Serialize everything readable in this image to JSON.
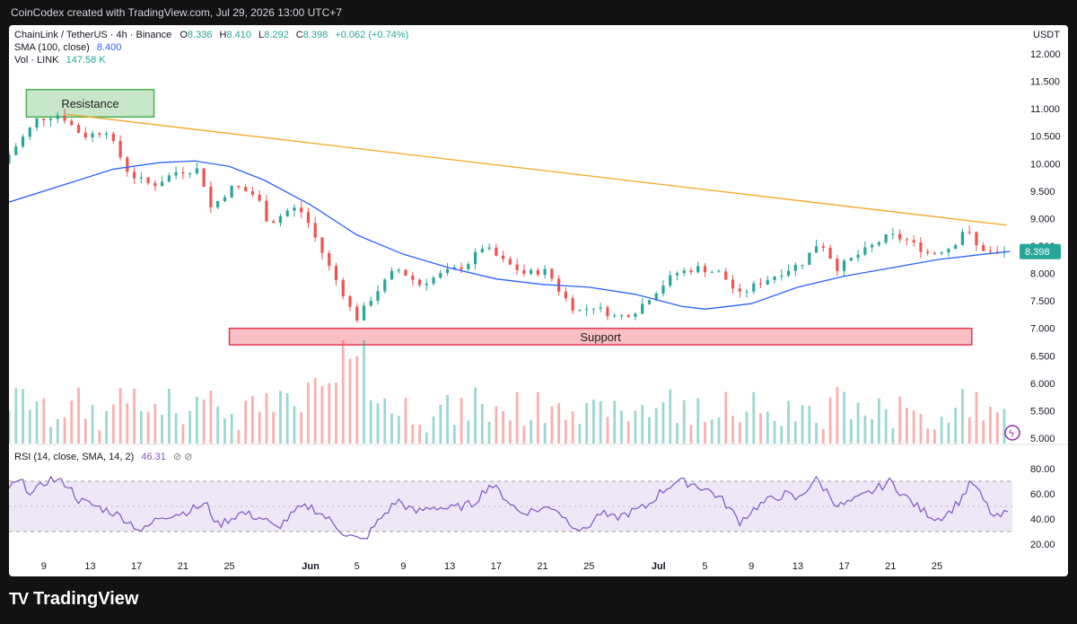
{
  "credit": "CoinCodex created with TradingView.com, Jul 29, 2026 13:00 UTC+7",
  "logo": {
    "mark": "TV",
    "name": "TradingView",
    "icon": "tradingview-logo-icon"
  },
  "legend": {
    "pair": "ChainLink / TetherUS · 4h · Binance",
    "o_label": "O",
    "o_value": "8.336",
    "h_label": "H",
    "h_value": "8.410",
    "l_label": "L",
    "l_value": "8.292",
    "c_label": "C",
    "c_value": "8.398",
    "change": "+0.062 (+0.74%)",
    "sma_label": "SMA (100, close)",
    "sma_value": "8.400",
    "vol_label": "Vol · LINK",
    "vol_value": "147.58 K"
  },
  "colors": {
    "up": "#26a69a",
    "down": "#ef5350",
    "sma": "#2962ff",
    "trend": "#f5a623",
    "rsi": "#7e57c2",
    "resistance_fill": "#c8e6c9",
    "resistance_border": "#4caf50",
    "support_fill": "#f8c0c5",
    "support_border": "#e53950"
  },
  "chart_data": [
    {
      "type": "candlestick",
      "title": "ChainLink / TetherUS · 4h · Binance",
      "currency": "USDT",
      "ylim": [
        5.0,
        12.0
      ],
      "y_ticks": [
        "12.000",
        "11.500",
        "11.000",
        "10.500",
        "10.000",
        "9.500",
        "9.000",
        "8.500",
        "8.000",
        "7.500",
        "7.000",
        "6.500",
        "6.000",
        "5.500",
        "5.000"
      ],
      "x_ticks": [
        "9",
        "13",
        "17",
        "21",
        "25",
        "Jun",
        "5",
        "9",
        "13",
        "17",
        "21",
        "25",
        "Jul",
        "5",
        "9",
        "13",
        "17",
        "21",
        "25"
      ],
      "x_tick_days": [
        9,
        13,
        17,
        21,
        25,
        32,
        36,
        40,
        44,
        48,
        52,
        56,
        62,
        66,
        70,
        74,
        78,
        82,
        86
      ],
      "x_range_days": [
        6,
        92.5
      ],
      "price_path": [
        [
          6,
          10.0
        ],
        [
          9,
          10.8
        ],
        [
          11,
          10.9
        ],
        [
          13,
          10.5
        ],
        [
          15,
          10.6
        ],
        [
          17,
          9.8
        ],
        [
          19,
          9.6
        ],
        [
          21,
          9.85
        ],
        [
          23,
          9.9
        ],
        [
          24,
          9.2
        ],
        [
          26,
          9.6
        ],
        [
          28,
          9.4
        ],
        [
          29,
          8.9
        ],
        [
          31,
          9.2
        ],
        [
          32,
          9.1
        ],
        [
          34,
          8.2
        ],
        [
          35.5,
          7.6
        ],
        [
          36.5,
          7.15
        ],
        [
          38,
          7.6
        ],
        [
          40,
          8.1
        ],
        [
          42,
          7.8
        ],
        [
          44,
          8.0
        ],
        [
          46,
          8.15
        ],
        [
          47.5,
          8.5
        ],
        [
          49,
          8.25
        ],
        [
          51,
          8.0
        ],
        [
          53,
          8.05
        ],
        [
          54,
          7.7
        ],
        [
          55.5,
          7.3
        ],
        [
          57,
          7.4
        ],
        [
          59,
          7.2
        ],
        [
          60.5,
          7.3
        ],
        [
          62,
          7.6
        ],
        [
          64,
          8.0
        ],
        [
          66,
          8.1
        ],
        [
          68,
          8.0
        ],
        [
          69.5,
          7.6
        ],
        [
          71,
          7.8
        ],
        [
          73,
          8.0
        ],
        [
          75,
          8.2
        ],
        [
          76.5,
          8.6
        ],
        [
          78,
          8.1
        ],
        [
          79.5,
          8.3
        ],
        [
          81,
          8.5
        ],
        [
          82.5,
          8.7
        ],
        [
          84,
          8.6
        ],
        [
          86,
          8.35
        ],
        [
          88,
          8.5
        ],
        [
          89,
          8.85
        ],
        [
          90,
          8.5
        ],
        [
          91.5,
          8.35
        ],
        [
          92.3,
          8.398
        ]
      ],
      "sma_path": [
        [
          6,
          9.3
        ],
        [
          12,
          9.7
        ],
        [
          15,
          9.9
        ],
        [
          19,
          10.02
        ],
        [
          22,
          10.05
        ],
        [
          25,
          9.95
        ],
        [
          28,
          9.7
        ],
        [
          32,
          9.25
        ],
        [
          36,
          8.7
        ],
        [
          40,
          8.35
        ],
        [
          44,
          8.1
        ],
        [
          48,
          7.9
        ],
        [
          52,
          7.8
        ],
        [
          56,
          7.75
        ],
        [
          60,
          7.62
        ],
        [
          64,
          7.4
        ],
        [
          66,
          7.35
        ],
        [
          70,
          7.45
        ],
        [
          74,
          7.75
        ],
        [
          78,
          7.95
        ],
        [
          82,
          8.1
        ],
        [
          86,
          8.25
        ],
        [
          90,
          8.35
        ],
        [
          92.3,
          8.4
        ]
      ],
      "last_price": 8.398,
      "last_price_label": "8.398"
    },
    {
      "type": "histogram",
      "series_name": "Vol · LINK",
      "last_value": "147.58 K",
      "notes": "volume bars, unlabeled scale"
    },
    {
      "type": "line",
      "title": "RSI (14, close, SMA, 14, 2)",
      "last_value": "46.31",
      "ylim": [
        15,
        85
      ],
      "band": [
        30,
        70
      ],
      "y_ticks": [
        "80.00",
        "60.00",
        "40.00",
        "20.00"
      ],
      "rsi_path": [
        [
          6,
          65
        ],
        [
          7,
          70
        ],
        [
          8,
          60
        ],
        [
          9.5,
          72
        ],
        [
          11,
          68
        ],
        [
          12,
          55
        ],
        [
          13.5,
          50
        ],
        [
          15,
          45
        ],
        [
          16,
          40
        ],
        [
          17.5,
          30
        ],
        [
          19,
          42
        ],
        [
          21,
          45
        ],
        [
          23,
          52
        ],
        [
          24,
          35
        ],
        [
          26,
          45
        ],
        [
          28,
          40
        ],
        [
          29,
          32
        ],
        [
          31,
          48
        ],
        [
          32,
          50
        ],
        [
          33.5,
          40
        ],
        [
          35,
          28
        ],
        [
          36.5,
          22
        ],
        [
          38,
          40
        ],
        [
          39.5,
          55
        ],
        [
          41,
          45
        ],
        [
          42.5,
          50
        ],
        [
          44,
          48
        ],
        [
          46,
          52
        ],
        [
          47.5,
          68
        ],
        [
          49,
          55
        ],
        [
          50,
          45
        ],
        [
          52,
          48
        ],
        [
          53,
          50
        ],
        [
          54,
          40
        ],
        [
          55.5,
          30
        ],
        [
          57,
          45
        ],
        [
          58,
          40
        ],
        [
          59.5,
          45
        ],
        [
          61,
          50
        ],
        [
          62,
          60
        ],
        [
          63.5,
          70
        ],
        [
          65,
          68
        ],
        [
          66.5,
          62
        ],
        [
          67.5,
          55
        ],
        [
          69,
          38
        ],
        [
          70.5,
          50
        ],
        [
          71.5,
          55
        ],
        [
          73,
          60
        ],
        [
          74,
          55
        ],
        [
          75.5,
          72
        ],
        [
          76.5,
          62
        ],
        [
          77.5,
          50
        ],
        [
          79,
          55
        ],
        [
          80,
          60
        ],
        [
          82,
          70
        ],
        [
          83,
          60
        ],
        [
          84.5,
          48
        ],
        [
          86,
          40
        ],
        [
          87,
          45
        ],
        [
          88,
          55
        ],
        [
          89,
          70
        ],
        [
          90,
          55
        ],
        [
          91,
          40
        ],
        [
          92.3,
          46
        ]
      ]
    }
  ],
  "annotations": {
    "resistance": {
      "label": "Resistance",
      "day_from": 7.5,
      "day_to": 18.5,
      "value_from": 10.85,
      "value_to": 11.35
    },
    "support": {
      "label": "Support",
      "day_from": 25,
      "day_to": 89,
      "value_from": 6.7,
      "value_to": 7.0
    },
    "trendline": {
      "day_from": 11,
      "value_from": 10.9,
      "day_to": 92,
      "value_to": 8.88
    }
  }
}
